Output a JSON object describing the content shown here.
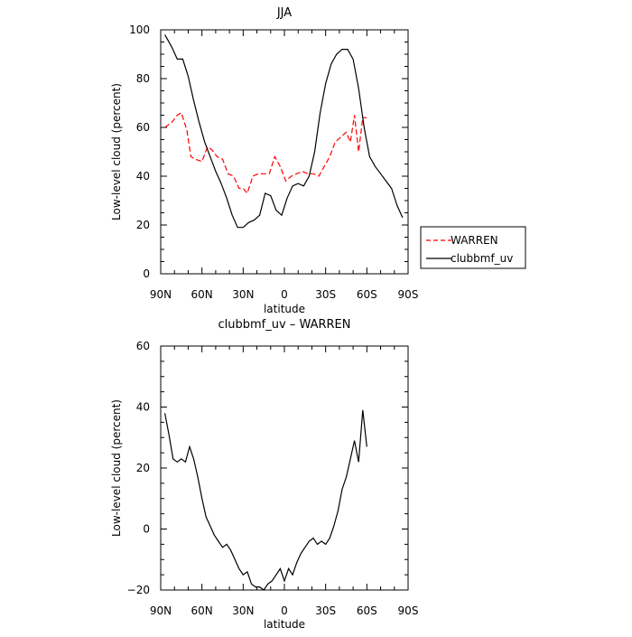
{
  "chart_data": [
    {
      "type": "line",
      "title": "JJA",
      "xlabel": "latitude",
      "ylabel": "Low-level cloud (percent)",
      "xlim": [
        90,
        -90
      ],
      "ylim": [
        0,
        100
      ],
      "xticks": [
        90,
        60,
        30,
        0,
        -30,
        -60,
        -90
      ],
      "xtick_labels": [
        "90N",
        "60N",
        "30N",
        "0",
        "30S",
        "60S",
        "90S"
      ],
      "yticks": [
        0,
        20,
        40,
        60,
        80,
        100
      ],
      "ytick_labels": [
        "0",
        "20",
        "40",
        "60",
        "80",
        "100"
      ],
      "legend_position": "right",
      "series": [
        {
          "name": "WARREN",
          "color": "#ff0000",
          "dash": "dashed",
          "x": [
            87,
            82,
            78,
            75,
            71,
            68,
            65,
            60,
            56,
            53,
            49,
            45,
            41,
            37,
            33,
            30,
            27,
            23,
            19,
            15,
            11,
            7,
            3,
            -1,
            -5,
            -9,
            -13,
            -17,
            -21,
            -25,
            -29,
            -33,
            -37,
            -41,
            -45,
            -48,
            -51,
            -54,
            -57,
            -60
          ],
          "y": [
            60,
            62,
            65,
            66,
            59,
            48,
            47,
            46,
            52,
            51,
            48,
            47,
            41,
            40,
            35,
            35,
            33,
            40,
            41,
            41,
            41,
            48,
            44,
            38,
            40,
            41,
            42,
            41,
            41,
            40,
            44,
            48,
            54,
            56,
            58,
            54,
            65,
            50,
            64,
            64
          ]
        },
        {
          "name": "clubbmf_uv",
          "color": "#000000",
          "dash": "solid",
          "x": [
            87,
            82,
            78,
            74,
            70,
            66,
            62,
            58,
            54,
            50,
            46,
            42,
            38,
            34,
            30,
            26,
            22,
            18,
            14,
            10,
            6,
            2,
            -2,
            -6,
            -10,
            -14,
            -18,
            -22,
            -26,
            -30,
            -34,
            -38,
            -42,
            -46,
            -50,
            -54,
            -58,
            -62,
            -66,
            -70,
            -74,
            -78,
            -82,
            -86
          ],
          "y": [
            98,
            93,
            88,
            88,
            81,
            71,
            62,
            54,
            48,
            42,
            37,
            31,
            24,
            19,
            19,
            21,
            22,
            24,
            33,
            32,
            26,
            24,
            31,
            36,
            37,
            36,
            40,
            50,
            66,
            78,
            86,
            90,
            92,
            92,
            88,
            76,
            60,
            48,
            44,
            41,
            38,
            35,
            28,
            23
          ]
        }
      ]
    },
    {
      "type": "line",
      "title": "clubbmf_uv – WARREN",
      "xlabel": "latitude",
      "ylabel": "Low-level cloud (percent)",
      "xlim": [
        90,
        -90
      ],
      "ylim": [
        -20,
        60
      ],
      "xticks": [
        90,
        60,
        30,
        0,
        -30,
        -60,
        -90
      ],
      "xtick_labels": [
        "90N",
        "60N",
        "30N",
        "0",
        "30S",
        "60S",
        "90S"
      ],
      "yticks": [
        -20,
        0,
        20,
        40,
        60
      ],
      "ytick_labels": [
        "−20",
        "0",
        "20",
        "40",
        "60"
      ],
      "series": [
        {
          "name": "",
          "color": "#000000",
          "dash": "solid",
          "x": [
            87,
            84,
            81,
            78,
            75,
            72,
            69,
            66,
            63,
            60,
            57,
            54,
            51,
            48,
            45,
            42,
            39,
            36,
            33,
            30,
            27,
            24,
            21,
            18,
            15,
            12,
            9,
            6,
            3,
            0,
            -3,
            -6,
            -9,
            -12,
            -15,
            -18,
            -21,
            -24,
            -27,
            -30,
            -33,
            -36,
            -39,
            -42,
            -45,
            -48,
            -51,
            -54,
            -57,
            -60
          ],
          "y": [
            38,
            31,
            23,
            22,
            23,
            22,
            27,
            23,
            17,
            10,
            4,
            1,
            -2,
            -4,
            -6,
            -5,
            -7,
            -10,
            -13,
            -15,
            -14,
            -18,
            -19,
            -19,
            -20,
            -18,
            -17,
            -15,
            -13,
            -17,
            -13,
            -15,
            -11,
            -8,
            -6,
            -4,
            -3,
            -5,
            -4,
            -5,
            -3,
            1,
            6,
            13,
            17,
            23,
            29,
            22,
            39,
            27
          ]
        }
      ]
    }
  ]
}
